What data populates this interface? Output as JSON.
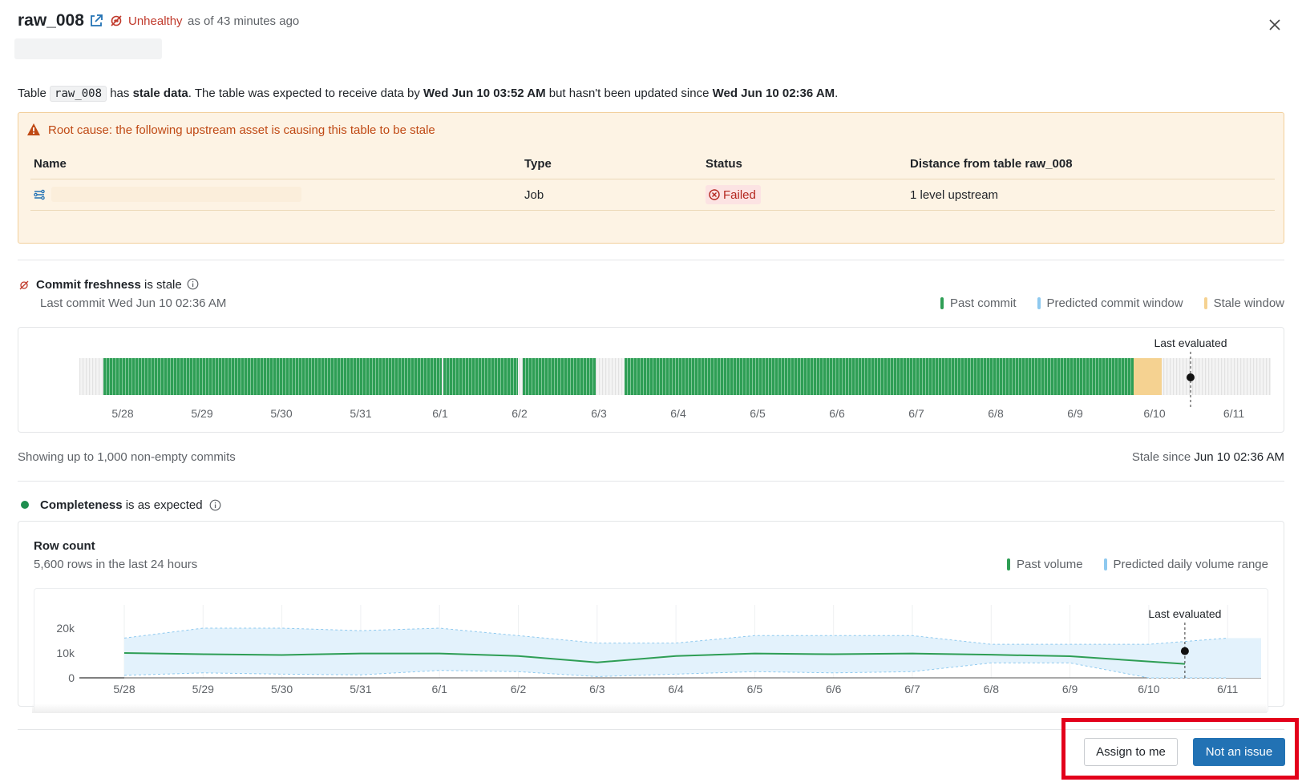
{
  "header": {
    "title": "raw_008",
    "health_status": "Unhealthy",
    "as_of": "as of 43 minutes ago"
  },
  "summary": {
    "part1": "Table ",
    "table_code": "raw_008",
    "part2": " has ",
    "bold1": "stale data",
    "part3": ". The table was expected to receive data by ",
    "bold2": "Wed Jun 10 03:52 AM",
    "part4": " but hasn't been updated since ",
    "bold3": "Wed Jun 10 02:36 AM",
    "part5": "."
  },
  "root_cause": {
    "message": "Root cause: the following upstream asset is causing this table to be stale",
    "columns": {
      "name": "Name",
      "type": "Type",
      "status": "Status",
      "distance": "Distance from table raw_008"
    },
    "row": {
      "type": "Job",
      "status": "Failed",
      "distance": "1 level upstream"
    }
  },
  "freshness": {
    "label": "Commit freshness",
    "state": " is stale",
    "last_commit": "Last commit Wed Jun 10 02:36 AM",
    "legend": [
      "Past commit",
      "Predicted commit window",
      "Stale window"
    ],
    "last_evaluated": "Last evaluated",
    "footer_left": "Showing up to 1,000 non-empty commits",
    "footer_right_label": "Stale since ",
    "footer_right_value": "Jun 10 02:36 AM"
  },
  "completeness": {
    "label": "Completeness",
    "state": " is as expected",
    "card_title": "Row count",
    "card_subtitle": "5,600 rows in the last 24 hours",
    "legend": [
      "Past volume",
      "Predicted daily volume range"
    ],
    "last_evaluated": "Last evaluated"
  },
  "colors": {
    "past": "#2e9e55",
    "predicted": "#8ec9ef",
    "stale": "#f5d291",
    "primary": "#2272b4",
    "unhealthy": "#c0392b",
    "healthy": "#1e8e4e"
  },
  "chart_data": [
    {
      "type": "bar",
      "x": [
        "5/28",
        "5/29",
        "5/30",
        "5/31",
        "6/1",
        "6/2",
        "6/3",
        "6/4",
        "6/5",
        "6/6",
        "6/7",
        "6/8",
        "6/9",
        "6/10",
        "6/11"
      ],
      "series": [
        {
          "name": "Past commit",
          "segments": [
            [
              "5/28",
              "6/1"
            ],
            [
              "6/1",
              "6/2"
            ],
            [
              "6/2",
              "6/3"
            ],
            [
              "6/3",
              "6/10"
            ]
          ]
        },
        {
          "name": "Stale window",
          "segments": [
            [
              "6/10",
              "6/10"
            ]
          ]
        }
      ],
      "annotations": [
        "Last evaluated"
      ]
    },
    {
      "type": "area",
      "x": [
        "5/28",
        "5/29",
        "5/30",
        "5/31",
        "6/1",
        "6/2",
        "6/3",
        "6/4",
        "6/5",
        "6/6",
        "6/7",
        "6/8",
        "6/9",
        "6/10",
        "6/11"
      ],
      "yticks": [
        "0",
        "10k",
        "20k"
      ],
      "ylim": [
        0,
        25000
      ],
      "series": [
        {
          "name": "Past volume",
          "values": [
            10000,
            9500,
            9200,
            9800,
            9800,
            8800,
            6200,
            8800,
            9800,
            9500,
            9800,
            9300,
            8700,
            5600,
            null
          ]
        },
        {
          "name": "Predicted daily volume range",
          "low": [
            1000,
            2000,
            1500,
            1200,
            3000,
            2500,
            500,
            1500,
            2500,
            2000,
            2500,
            6000,
            6000,
            0,
            0
          ],
          "high": [
            16000,
            20000,
            20000,
            19000,
            20000,
            17000,
            14000,
            14000,
            17000,
            17000,
            17000,
            13500,
            13500,
            13500,
            16000
          ]
        }
      ],
      "annotations": [
        "Last evaluated"
      ]
    }
  ],
  "actions": {
    "assign": "Assign to me",
    "not_issue": "Not an issue"
  }
}
